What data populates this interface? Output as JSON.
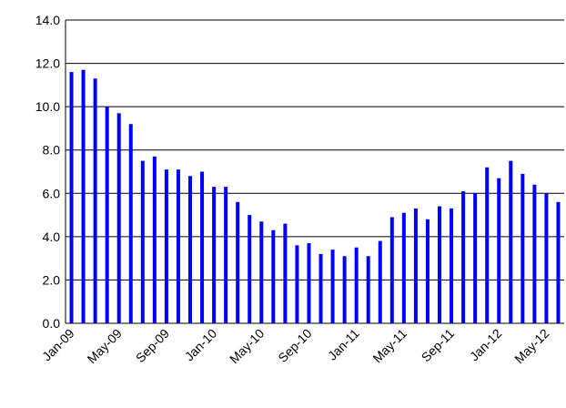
{
  "chart_data": {
    "type": "bar",
    "categories": [
      "Jan-09",
      null,
      null,
      null,
      "May-09",
      null,
      null,
      null,
      "Sep-09",
      null,
      null,
      null,
      "Jan-10",
      null,
      null,
      null,
      "May-10",
      null,
      null,
      null,
      "Sep-10",
      null,
      null,
      null,
      "Jan-11",
      null,
      null,
      null,
      "May-11",
      null,
      null,
      null,
      "Sep-11",
      null,
      null,
      null,
      "Jan-12",
      null,
      null,
      null,
      "May-12",
      null
    ],
    "values": [
      11.6,
      11.7,
      11.3,
      10.0,
      9.7,
      9.2,
      7.5,
      7.7,
      7.1,
      7.1,
      6.8,
      7.0,
      6.3,
      6.3,
      5.6,
      5.0,
      4.7,
      4.3,
      4.6,
      3.6,
      3.7,
      3.2,
      3.4,
      3.1,
      3.5,
      3.1,
      3.8,
      4.9,
      5.1,
      5.3,
      4.8,
      5.4,
      5.3,
      6.1,
      6.0,
      7.2,
      6.7,
      7.5,
      6.9,
      6.4,
      6.0,
      5.6
    ],
    "color": "#0000ff",
    "ylim": [
      0,
      14
    ],
    "yticks": [
      {
        "value": 0,
        "label": "0.0"
      },
      {
        "value": 2,
        "label": "2.0"
      },
      {
        "value": 4,
        "label": "4.0"
      },
      {
        "value": 6,
        "label": "6.0"
      },
      {
        "value": 8,
        "label": "8.0"
      },
      {
        "value": 10,
        "label": "10.0"
      },
      {
        "value": 12,
        "label": "12.0"
      },
      {
        "value": 14,
        "label": "14.0"
      }
    ],
    "grid": true
  }
}
